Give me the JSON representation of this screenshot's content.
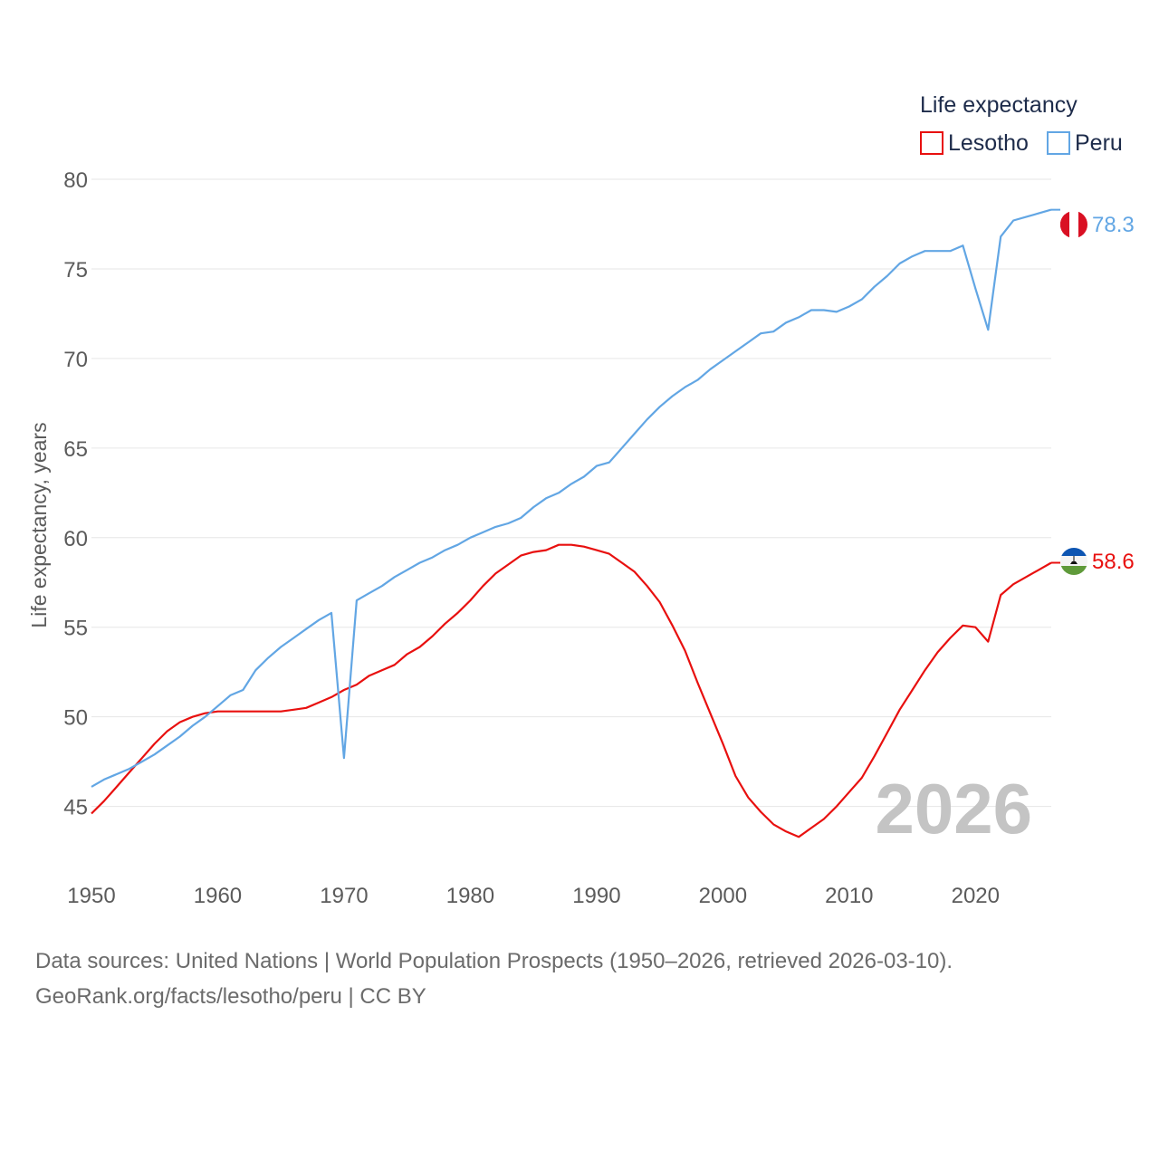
{
  "chart_data": {
    "type": "line",
    "legend": {
      "title": "Life expectancy",
      "position": "top-right"
    },
    "ylabel": "Life expectancy, years",
    "xlabel": "",
    "xlim": [
      1950,
      2026
    ],
    "ylim": [
      42,
      80
    ],
    "yticks": [
      45,
      50,
      55,
      60,
      65,
      70,
      75,
      80
    ],
    "xticks": [
      1950,
      1960,
      1970,
      1980,
      1990,
      2000,
      2010,
      2020
    ],
    "year_label": "2026",
    "series": [
      {
        "name": "Lesotho",
        "color": "#e8100f",
        "end_label": "58.6",
        "flag": "lesotho-flag",
        "x": [
          1950,
          1951,
          1952,
          1953,
          1954,
          1955,
          1956,
          1957,
          1958,
          1959,
          1960,
          1961,
          1962,
          1963,
          1964,
          1965,
          1966,
          1967,
          1968,
          1969,
          1970,
          1971,
          1972,
          1973,
          1974,
          1975,
          1976,
          1977,
          1978,
          1979,
          1980,
          1981,
          1982,
          1983,
          1984,
          1985,
          1986,
          1987,
          1988,
          1989,
          1990,
          1991,
          1992,
          1993,
          1994,
          1995,
          1996,
          1997,
          1998,
          1999,
          2000,
          2001,
          2002,
          2003,
          2004,
          2005,
          2006,
          2007,
          2008,
          2009,
          2010,
          2011,
          2012,
          2013,
          2014,
          2015,
          2016,
          2017,
          2018,
          2019,
          2020,
          2021,
          2022,
          2023,
          2024,
          2025,
          2026
        ],
        "values": [
          44.6,
          45.3,
          46.1,
          46.9,
          47.7,
          48.5,
          49.2,
          49.7,
          50.0,
          50.2,
          50.3,
          50.3,
          50.3,
          50.3,
          50.3,
          50.3,
          50.4,
          50.5,
          50.8,
          51.1,
          51.5,
          51.8,
          52.3,
          52.6,
          52.9,
          53.5,
          53.9,
          54.5,
          55.2,
          55.8,
          56.5,
          57.3,
          58.0,
          58.5,
          59.0,
          59.2,
          59.3,
          59.6,
          59.6,
          59.5,
          59.3,
          59.1,
          58.6,
          58.1,
          57.3,
          56.4,
          55.1,
          53.7,
          51.9,
          50.2,
          48.5,
          46.7,
          45.5,
          44.7,
          44.0,
          43.6,
          43.3,
          43.8,
          44.3,
          45.0,
          45.8,
          46.6,
          47.8,
          49.1,
          50.4,
          51.5,
          52.6,
          53.6,
          54.4,
          55.1,
          55.0,
          54.2,
          56.8,
          57.4,
          57.8,
          58.2,
          58.6
        ]
      },
      {
        "name": "Peru",
        "color": "#62a6e4",
        "end_label": "78.3",
        "flag": "peru-flag",
        "x": [
          1950,
          1951,
          1952,
          1953,
          1954,
          1955,
          1956,
          1957,
          1958,
          1959,
          1960,
          1961,
          1962,
          1963,
          1964,
          1965,
          1966,
          1967,
          1968,
          1969,
          1970,
          1971,
          1972,
          1973,
          1974,
          1975,
          1976,
          1977,
          1978,
          1979,
          1980,
          1981,
          1982,
          1983,
          1984,
          1985,
          1986,
          1987,
          1988,
          1989,
          1990,
          1991,
          1992,
          1993,
          1994,
          1995,
          1996,
          1997,
          1998,
          1999,
          2000,
          2001,
          2002,
          2003,
          2004,
          2005,
          2006,
          2007,
          2008,
          2009,
          2010,
          2011,
          2012,
          2013,
          2014,
          2015,
          2016,
          2017,
          2018,
          2019,
          2020,
          2021,
          2022,
          2023,
          2024,
          2025,
          2026
        ],
        "values": [
          46.1,
          46.5,
          46.8,
          47.1,
          47.5,
          47.9,
          48.4,
          48.9,
          49.5,
          50.0,
          50.6,
          51.2,
          51.5,
          52.6,
          53.3,
          53.9,
          54.4,
          54.9,
          55.4,
          55.8,
          47.7,
          56.5,
          56.9,
          57.3,
          57.8,
          58.2,
          58.6,
          58.9,
          59.3,
          59.6,
          60.0,
          60.3,
          60.6,
          60.8,
          61.1,
          61.7,
          62.2,
          62.5,
          63.0,
          63.4,
          64.0,
          64.2,
          65.0,
          65.8,
          66.6,
          67.3,
          67.9,
          68.4,
          68.8,
          69.4,
          69.9,
          70.4,
          70.9,
          71.4,
          71.5,
          72.0,
          72.3,
          72.7,
          72.7,
          72.6,
          72.9,
          73.3,
          74.0,
          74.6,
          75.3,
          75.7,
          76.0,
          76.0,
          76.0,
          76.3,
          73.9,
          71.6,
          76.8,
          77.7,
          77.9,
          78.1,
          78.3
        ]
      }
    ]
  },
  "footer": {
    "line1": "Data sources: United Nations | World Population Prospects (1950–2026, retrieved 2026-03-10).",
    "line2": "GeoRank.org/facts/lesotho/peru | CC BY"
  }
}
